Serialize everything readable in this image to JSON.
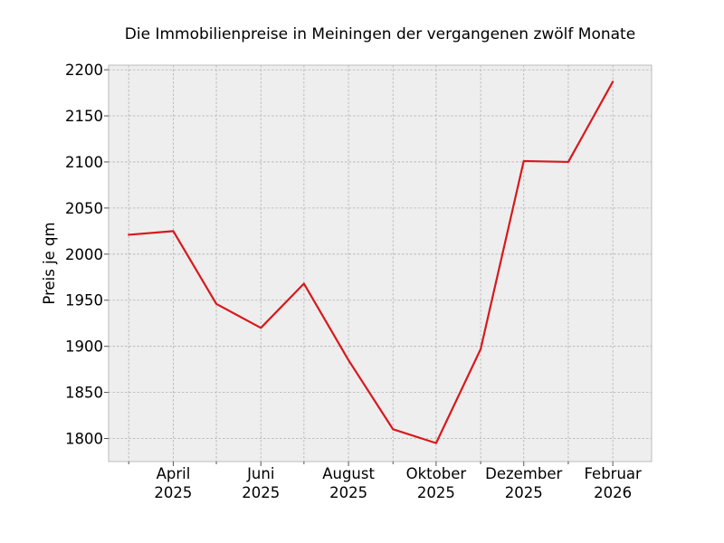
{
  "chart_data": {
    "type": "line",
    "title": "Die Immobilienpreise in Meiningen der vergangenen zwölf Monate",
    "xlabel": "",
    "ylabel": "Preis je qm",
    "x": [
      "2025-03",
      "2025-04",
      "2025-05",
      "2025-06",
      "2025-07",
      "2025-08",
      "2025-09",
      "2025-10",
      "2025-11",
      "2025-12",
      "2026-01",
      "2026-02"
    ],
    "series": [
      {
        "values": [
          2021,
          2025,
          1946,
          1920,
          1968,
          1885,
          1810,
          1795,
          1897,
          2101,
          2100,
          2187
        ],
        "color": "#d7191c"
      }
    ],
    "xlim": [
      "2025-02-15",
      "2026-02-28"
    ],
    "ylim": [
      1775,
      2205
    ],
    "yticks": [
      1800,
      1850,
      1900,
      1950,
      2000,
      2050,
      2100,
      2150,
      2200
    ],
    "xtick_labels": [
      {
        "x": "2025-04",
        "line1": "April",
        "line2": "2025"
      },
      {
        "x": "2025-06",
        "line1": "Juni",
        "line2": "2025"
      },
      {
        "x": "2025-08",
        "line1": "August",
        "line2": "2025"
      },
      {
        "x": "2025-10",
        "line1": "Oktober",
        "line2": "2025"
      },
      {
        "x": "2025-12",
        "line1": "Dezember",
        "line2": "2025"
      },
      {
        "x": "2026-02",
        "line1": "Februar",
        "line2": "2026"
      }
    ],
    "minor_xticks": [
      "2025-03",
      "2025-05",
      "2025-07",
      "2025-09",
      "2025-11",
      "2026-01"
    ],
    "grid": true,
    "background_color": "#eeeeee",
    "spine_color": "#bcbcbc"
  }
}
